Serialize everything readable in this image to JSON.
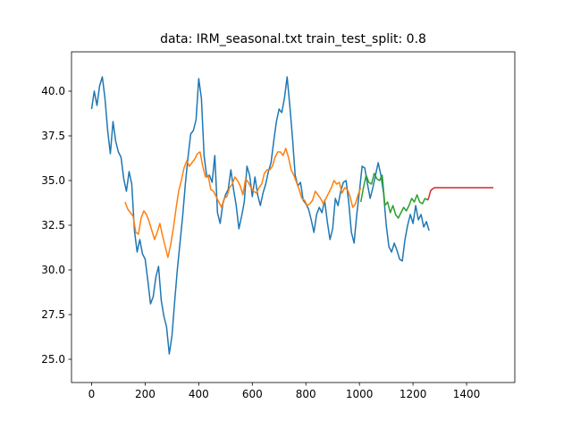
{
  "chart_data": {
    "type": "line",
    "title": "data: IRM_seasonal.txt train_test_split: 0.8",
    "xlabel": "",
    "ylabel": "",
    "xlim": [
      -75,
      1580
    ],
    "ylim": [
      23.7,
      42.2
    ],
    "xticks": [
      0,
      200,
      400,
      600,
      800,
      1000,
      1200,
      1400
    ],
    "xtick_labels": [
      "0",
      "200",
      "400",
      "600",
      "800",
      "1000",
      "1200",
      "1400"
    ],
    "yticks": [
      25.0,
      27.5,
      30.0,
      32.5,
      35.0,
      37.5,
      40.0
    ],
    "ytick_labels": [
      "25.0",
      "27.5",
      "30.0",
      "32.5",
      "35.0",
      "37.5",
      "40.0"
    ],
    "grid": false,
    "legend": "none",
    "series": [
      {
        "color": "#1f77b4",
        "x": [
          0,
          10,
          20,
          30,
          40,
          50,
          60,
          70,
          80,
          90,
          100,
          110,
          120,
          130,
          140,
          150,
          160,
          170,
          180,
          190,
          200,
          210,
          220,
          230,
          240,
          250,
          260,
          270,
          280,
          290,
          300,
          310,
          320,
          330,
          340,
          350,
          360,
          370,
          380,
          390,
          400,
          410,
          420,
          430,
          440,
          450,
          460,
          470,
          480,
          490,
          500,
          510,
          520,
          530,
          540,
          550,
          560,
          570,
          580,
          590,
          600,
          610,
          620,
          630,
          640,
          650,
          660,
          670,
          680,
          690,
          700,
          710,
          720,
          730,
          740,
          750,
          760,
          770,
          780,
          790,
          800,
          810,
          820,
          830,
          840,
          850,
          860,
          870,
          880,
          890,
          900,
          910,
          920,
          930,
          940,
          950,
          960,
          970,
          980,
          990,
          1000,
          1010,
          1020,
          1030,
          1040,
          1050,
          1060,
          1070,
          1080,
          1090,
          1100,
          1110,
          1120,
          1130,
          1140,
          1150,
          1160,
          1170,
          1180,
          1190,
          1200,
          1210,
          1220,
          1230,
          1240,
          1250,
          1260
        ],
        "y": [
          39.0,
          40.0,
          39.2,
          40.3,
          40.8,
          39.6,
          37.8,
          36.5,
          38.3,
          37.2,
          36.6,
          36.3,
          35.1,
          34.4,
          35.5,
          34.8,
          32.2,
          31.0,
          31.7,
          30.9,
          30.6,
          29.4,
          28.1,
          28.5,
          29.6,
          30.2,
          28.3,
          27.4,
          26.8,
          25.3,
          26.3,
          28.2,
          30.0,
          31.5,
          33.0,
          34.8,
          36.3,
          37.6,
          37.8,
          38.4,
          40.7,
          39.6,
          36.4,
          35.2,
          35.3,
          34.9,
          36.4,
          33.2,
          32.6,
          33.7,
          34.2,
          34.5,
          35.6,
          34.5,
          33.6,
          32.3,
          33.0,
          33.8,
          35.8,
          35.3,
          34.1,
          35.2,
          34.2,
          33.6,
          34.3,
          34.8,
          35.5,
          36.0,
          37.2,
          38.3,
          39.0,
          38.8,
          39.6,
          40.8,
          39.2,
          37.4,
          35.3,
          34.7,
          34.9,
          33.9,
          33.7,
          33.4,
          32.8,
          32.1,
          33.1,
          33.5,
          33.2,
          33.9,
          32.7,
          31.7,
          32.3,
          34.0,
          33.6,
          34.4,
          34.9,
          35.0,
          33.8,
          32.1,
          31.5,
          33.1,
          34.4,
          35.8,
          35.7,
          34.8,
          34.0,
          34.6,
          35.3,
          36.0,
          35.3,
          34.3,
          32.5,
          31.3,
          31.0,
          31.5,
          31.1,
          30.6,
          30.5,
          31.7,
          32.5,
          33.1,
          32.6,
          33.6,
          32.8,
          33.1,
          32.4,
          32.7,
          32.2
        ]
      },
      {
        "color": "#ff7f0e",
        "x": [
          125,
          135,
          145,
          155,
          165,
          175,
          185,
          195,
          205,
          215,
          225,
          235,
          245,
          255,
          265,
          275,
          285,
          295,
          305,
          315,
          325,
          335,
          345,
          355,
          365,
          375,
          385,
          395,
          405,
          415,
          425,
          435,
          445,
          455,
          465,
          475,
          485,
          495,
          505,
          515,
          525,
          535,
          545,
          555,
          565,
          575,
          585,
          595,
          605,
          615,
          625,
          635,
          645,
          655,
          665,
          675,
          685,
          695,
          705,
          715,
          725,
          735,
          745,
          755,
          765,
          775,
          785,
          795,
          805,
          815,
          825,
          835,
          845,
          855,
          865,
          875,
          885,
          895,
          905,
          915,
          925,
          935,
          945,
          955,
          965,
          975,
          985,
          995,
          1005
        ],
        "y": [
          33.8,
          33.4,
          33.2,
          33.0,
          32.1,
          32.0,
          32.9,
          33.3,
          33.1,
          32.7,
          32.2,
          31.7,
          32.1,
          32.6,
          31.9,
          31.3,
          30.7,
          31.4,
          32.3,
          33.4,
          34.4,
          35.0,
          35.7,
          36.1,
          35.8,
          36.0,
          36.2,
          36.5,
          36.6,
          35.8,
          35.2,
          35.3,
          34.5,
          34.4,
          34.1,
          33.8,
          33.5,
          34.0,
          34.1,
          34.6,
          34.8,
          35.2,
          35.0,
          34.7,
          34.2,
          35.1,
          34.9,
          34.6,
          34.4,
          34.3,
          34.6,
          34.8,
          35.4,
          35.6,
          35.6,
          35.8,
          36.3,
          36.6,
          36.6,
          36.4,
          36.8,
          36.3,
          35.6,
          35.3,
          34.9,
          34.5,
          34.0,
          33.9,
          33.6,
          33.7,
          33.9,
          34.4,
          34.2,
          34.0,
          33.7,
          34.0,
          34.3,
          34.6,
          35.0,
          34.8,
          34.9,
          34.3,
          34.6,
          34.5,
          34.1,
          33.5,
          33.7,
          34.2,
          34.6
        ]
      },
      {
        "color": "#2ca02c",
        "x": [
          1005,
          1015,
          1025,
          1035,
          1045,
          1055,
          1065,
          1075,
          1085,
          1095,
          1105,
          1115,
          1125,
          1135,
          1145,
          1155,
          1165,
          1175,
          1185,
          1195,
          1205,
          1215,
          1225,
          1235,
          1245,
          1255
        ],
        "y": [
          33.8,
          34.6,
          35.3,
          34.9,
          34.8,
          35.4,
          35.1,
          35.0,
          35.3,
          33.6,
          33.8,
          33.2,
          33.6,
          33.1,
          32.9,
          33.2,
          33.5,
          33.3,
          33.6,
          34.0,
          33.8,
          34.2,
          33.8,
          33.7,
          34.0,
          33.9
        ]
      },
      {
        "color": "#d62728",
        "x": [
          1255,
          1260,
          1265,
          1270,
          1280,
          1300,
          1350,
          1400,
          1450,
          1500
        ],
        "y": [
          33.9,
          34.1,
          34.4,
          34.5,
          34.6,
          34.6,
          34.6,
          34.6,
          34.6,
          34.6
        ]
      }
    ]
  }
}
